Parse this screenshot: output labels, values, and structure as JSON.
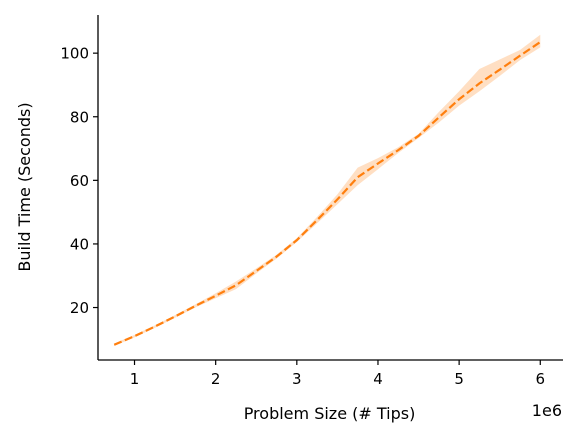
{
  "chart_data": {
    "type": "line",
    "title": "",
    "xlabel": "Problem Size (# Tips)",
    "ylabel": "Build Time (Seconds)",
    "x_offset_text": "1e6",
    "xlim": [
      0.55,
      6.28
    ],
    "ylim": [
      3.5,
      112
    ],
    "xticks": [
      1,
      2,
      3,
      4,
      5,
      6
    ],
    "yticks": [
      20,
      40,
      60,
      80,
      100
    ],
    "xtick_labels": [
      "1",
      "2",
      "3",
      "4",
      "5",
      "6"
    ],
    "ytick_labels": [
      "20",
      "40",
      "60",
      "80",
      "100"
    ],
    "grid": false,
    "series": [
      {
        "color": "#ff7f0e",
        "line_style": "dashed",
        "x": [
          0.75,
          1.0,
          1.25,
          1.5,
          1.75,
          2.0,
          2.25,
          2.5,
          2.75,
          3.0,
          3.25,
          3.5,
          3.75,
          4.0,
          4.25,
          4.5,
          4.75,
          5.0,
          5.25,
          5.5,
          5.75,
          6.0
        ],
        "y": [
          8.3,
          11.0,
          14.0,
          17.2,
          20.5,
          23.7,
          27.0,
          31.5,
          36.0,
          41.2,
          47.5,
          54.0,
          61.0,
          65.3,
          69.5,
          74.0,
          79.8,
          85.5,
          90.5,
          94.8,
          99.2,
          103.5
        ],
        "ci_low": [
          7.9,
          10.6,
          13.6,
          16.8,
          20.0,
          22.9,
          25.8,
          30.7,
          35.4,
          40.6,
          46.5,
          52.5,
          58.5,
          63.5,
          68.6,
          73.3,
          78.2,
          83.5,
          88.0,
          92.8,
          97.8,
          101.8
        ],
        "ci_high": [
          8.7,
          11.4,
          14.4,
          17.6,
          21.0,
          24.5,
          28.2,
          32.3,
          36.6,
          41.8,
          48.5,
          55.6,
          64.0,
          67.0,
          70.4,
          74.6,
          81.5,
          88.0,
          95.0,
          98.0,
          101.0,
          105.8
        ],
        "ci_color": "#ff7f0e",
        "ci_opacity": 0.25
      }
    ]
  }
}
